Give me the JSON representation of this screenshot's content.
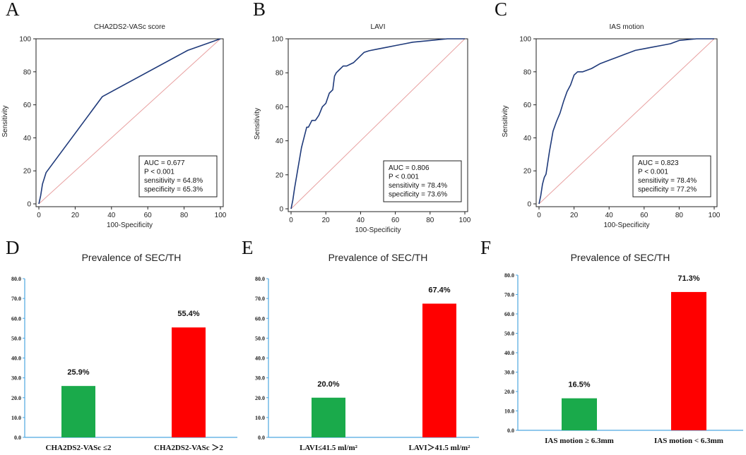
{
  "panels": {
    "a": "A",
    "b": "B",
    "c": "C",
    "d": "D",
    "e": "E",
    "f": "F"
  },
  "colors": {
    "roc_line": "#1f3a7a",
    "reference_line": "#e8a0a0",
    "bar_low": "#1aaa4b",
    "bar_high": "#ff0000",
    "bar_axis": "#4da6e0"
  },
  "chart_data": [
    {
      "type": "line",
      "panel": "A",
      "title": "CHA2DS2-VASc score",
      "xlabel": "100-Specificity",
      "ylabel": "Sensitivity",
      "xlim": [
        0,
        100
      ],
      "ylim": [
        0,
        100
      ],
      "x_ticks": [
        "0",
        "20",
        "40",
        "60",
        "80",
        "100"
      ],
      "y_ticks": [
        "0",
        "20",
        "40",
        "60",
        "80",
        "100"
      ],
      "series": [
        {
          "name": "ROC",
          "x": [
            0,
            1,
            2,
            4,
            35,
            82,
            100
          ],
          "y": [
            0,
            5,
            12,
            19,
            65,
            93,
            100
          ]
        },
        {
          "name": "Reference",
          "x": [
            0,
            100
          ],
          "y": [
            0,
            100
          ]
        }
      ],
      "stats": [
        "AUC = 0.677",
        "P < 0.001",
        "sensitivity = 64.8%",
        "specificity = 65.3%"
      ]
    },
    {
      "type": "line",
      "panel": "B",
      "title": "LAVI",
      "xlabel": "100-Specificity",
      "ylabel": "Sensitivity",
      "xlim": [
        0,
        100
      ],
      "ylim": [
        0,
        100
      ],
      "x_ticks": [
        "0",
        "20",
        "40",
        "60",
        "80",
        "100"
      ],
      "y_ticks": [
        "0",
        "20",
        "40",
        "60",
        "80",
        "100"
      ],
      "series": [
        {
          "name": "ROC",
          "x": [
            0,
            1,
            2,
            3,
            4,
            5,
            6,
            7,
            8,
            9,
            10,
            12,
            14,
            16,
            18,
            20,
            22,
            24,
            25,
            26,
            28,
            30,
            32,
            34,
            36,
            40,
            42,
            45,
            50,
            55,
            60,
            65,
            70,
            80,
            90,
            100
          ],
          "y": [
            0,
            5,
            12,
            18,
            24,
            30,
            36,
            40,
            44,
            48,
            48,
            52,
            52,
            55,
            60,
            62,
            68,
            70,
            78,
            80,
            82,
            84,
            84,
            85,
            86,
            90,
            92,
            93,
            94,
            95,
            96,
            97,
            98,
            99,
            100,
            100
          ]
        },
        {
          "name": "Reference",
          "x": [
            0,
            100
          ],
          "y": [
            0,
            100
          ]
        }
      ],
      "stats": [
        "AUC = 0.806",
        "P < 0.001",
        "sensitivity = 78.4%",
        "specificity = 73.6%"
      ]
    },
    {
      "type": "line",
      "panel": "C",
      "title": "IAS motion",
      "xlabel": "100-Specificity",
      "ylabel": "Sensitivity",
      "xlim": [
        0,
        100
      ],
      "ylim": [
        0,
        100
      ],
      "x_ticks": [
        "0",
        "20",
        "40",
        "60",
        "80",
        "100"
      ],
      "y_ticks": [
        "0",
        "20",
        "40",
        "60",
        "80",
        "100"
      ],
      "series": [
        {
          "name": "ROC",
          "x": [
            0,
            1,
            2,
            3,
            4,
            5,
            6,
            7,
            8,
            10,
            12,
            14,
            16,
            18,
            20,
            22,
            25,
            30,
            35,
            40,
            45,
            50,
            55,
            60,
            65,
            70,
            75,
            80,
            90,
            100
          ],
          "y": [
            0,
            5,
            12,
            16,
            18,
            25,
            32,
            38,
            44,
            50,
            55,
            62,
            68,
            72,
            78,
            80,
            80,
            82,
            85,
            87,
            89,
            91,
            93,
            94,
            95,
            96,
            97,
            99,
            100,
            100
          ]
        },
        {
          "name": "Reference",
          "x": [
            0,
            100
          ],
          "y": [
            0,
            100
          ]
        }
      ],
      "stats": [
        "AUC = 0.823",
        "P < 0.001",
        "sensitivity = 78.4%",
        "specificity = 77.2%"
      ]
    },
    {
      "type": "bar",
      "panel": "D",
      "title": "Prevalence of SEC/TH",
      "categories": [
        "CHA2DS2-VASc ≤2",
        "CHA2DS2-VASc ＞2"
      ],
      "values": [
        25.9,
        55.4
      ],
      "value_labels": [
        "25.9%",
        "55.4%"
      ],
      "ylim": [
        0,
        80
      ],
      "y_ticks": [
        "0.0",
        "10.0",
        "20.0",
        "30.0",
        "40.0",
        "50.0",
        "60.0",
        "70.0",
        "80.0"
      ]
    },
    {
      "type": "bar",
      "panel": "E",
      "title": "Prevalence of SEC/TH",
      "categories": [
        "LAVI≤41.5  ml/m²",
        "LAVI＞41.5  ml/m²"
      ],
      "values": [
        20.0,
        67.4
      ],
      "value_labels": [
        "20.0%",
        "67.4%"
      ],
      "ylim": [
        0,
        80
      ],
      "y_ticks": [
        "0.0",
        "10.0",
        "20.0",
        "30.0",
        "40.0",
        "50.0",
        "60.0",
        "70.0",
        "80.0"
      ]
    },
    {
      "type": "bar",
      "panel": "F",
      "title": "Prevalence of SEC/TH",
      "categories": [
        "IAS motion ≥ 6.3mm",
        "IAS motion < 6.3mm"
      ],
      "values": [
        16.5,
        71.3
      ],
      "value_labels": [
        "16.5%",
        "71.3%"
      ],
      "ylim": [
        0,
        80
      ],
      "y_ticks": [
        "0.0",
        "10.0",
        "20.0",
        "30.0",
        "40.0",
        "50.0",
        "60.0",
        "70.0",
        "80.0"
      ]
    }
  ]
}
